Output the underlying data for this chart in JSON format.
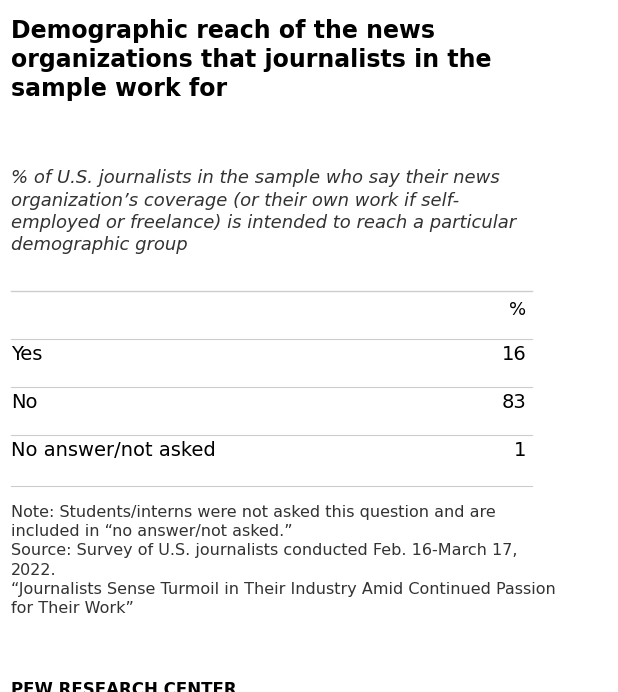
{
  "title": "Demographic reach of the news\norganizations that journalists in the\nsample work for",
  "subtitle": "% of U.S. journalists in the sample who say their news\norganization’s coverage (or their own work if self-\nemployed or freelance) is intended to reach a particular\ndemographic group",
  "col_header": "%",
  "rows": [
    {
      "label": "Yes",
      "value": "16"
    },
    {
      "label": "No",
      "value": "83"
    },
    {
      "label": "No answer/not asked",
      "value": "1"
    }
  ],
  "note_lines": [
    "Note: Students/interns were not asked this question and are",
    "included in “no answer/not asked.”",
    "Source: Survey of U.S. journalists conducted Feb. 16-March 17,",
    "2022.",
    "“Journalists Sense Turmoil in Their Industry Amid Continued Passion",
    "for Their Work”"
  ],
  "footer": "PEW RESEARCH CENTER",
  "background_color": "#ffffff",
  "title_fontsize": 17,
  "subtitle_fontsize": 13,
  "row_fontsize": 14,
  "note_fontsize": 11.5,
  "footer_fontsize": 12,
  "header_fontsize": 13,
  "title_color": "#000000",
  "subtitle_color": "#333333",
  "row_color": "#000000",
  "note_color": "#333333",
  "footer_color": "#000000",
  "line_color": "#cccccc",
  "footer_line_color": "#000000"
}
